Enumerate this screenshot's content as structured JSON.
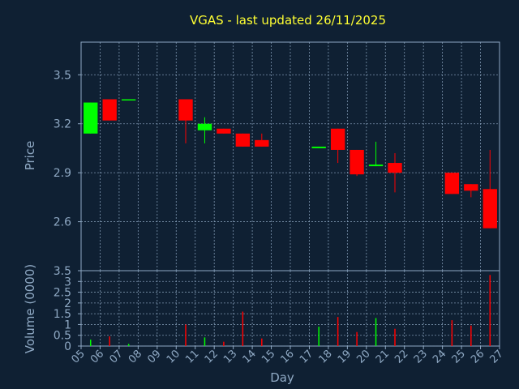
{
  "chart_data": [
    {
      "type": "candlestick",
      "title": "VGAS - last updated 26/11/2025",
      "xlabel": "Day",
      "ylabel": "Price",
      "ylim": [
        2.3,
        3.7
      ],
      "yticks": [
        2.6,
        2.9,
        3.2,
        3.5
      ],
      "yticklabels": [
        "2.6",
        "2.9",
        "3.2",
        "3.5"
      ],
      "xlim": [
        5,
        27
      ],
      "xticks": [
        "05",
        "06",
        "07",
        "08",
        "09",
        "10",
        "11",
        "12",
        "13",
        "14",
        "15",
        "16",
        "17",
        "18",
        "19",
        "20",
        "21",
        "22",
        "23",
        "24",
        "25",
        "26",
        "27"
      ],
      "grid": true,
      "up_color": "#00ff00",
      "down_color": "#ff0000",
      "candles": [
        {
          "day": 5,
          "open": 3.14,
          "high": 3.33,
          "low": 3.14,
          "close": 3.33
        },
        {
          "day": 6,
          "open": 3.35,
          "high": 3.35,
          "low": 3.22,
          "close": 3.22
        },
        {
          "day": 7,
          "open": 3.35,
          "high": 3.35,
          "low": 3.35,
          "close": 3.35
        },
        {
          "day": 10,
          "open": 3.35,
          "high": 3.35,
          "low": 3.08,
          "close": 3.22
        },
        {
          "day": 11,
          "open": 3.16,
          "high": 3.24,
          "low": 3.08,
          "close": 3.2
        },
        {
          "day": 12,
          "open": 3.17,
          "high": 3.17,
          "low": 3.14,
          "close": 3.14
        },
        {
          "day": 13,
          "open": 3.14,
          "high": 3.14,
          "low": 3.06,
          "close": 3.06
        },
        {
          "day": 14,
          "open": 3.1,
          "high": 3.14,
          "low": 3.06,
          "close": 3.06
        },
        {
          "day": 17,
          "open": 3.05,
          "high": 3.06,
          "low": 3.05,
          "close": 3.06
        },
        {
          "day": 18,
          "open": 3.17,
          "high": 3.17,
          "low": 2.96,
          "close": 3.04
        },
        {
          "day": 19,
          "open": 3.04,
          "high": 3.04,
          "low": 2.88,
          "close": 2.89
        },
        {
          "day": 20,
          "open": 2.94,
          "high": 3.09,
          "low": 2.94,
          "close": 2.95
        },
        {
          "day": 21,
          "open": 2.96,
          "high": 3.02,
          "low": 2.78,
          "close": 2.9
        },
        {
          "day": 24,
          "open": 2.9,
          "high": 2.9,
          "low": 2.77,
          "close": 2.77
        },
        {
          "day": 25,
          "open": 2.83,
          "high": 2.83,
          "low": 2.75,
          "close": 2.79
        },
        {
          "day": 26,
          "open": 2.8,
          "high": 3.04,
          "low": 2.56,
          "close": 2.56
        }
      ]
    },
    {
      "type": "bar",
      "xlabel": "Day",
      "ylabel": "Volume (0000)",
      "ylim": [
        0,
        3.5
      ],
      "yticks": [
        0,
        0.5,
        1,
        1.5,
        2,
        2.5,
        3,
        3.5
      ],
      "yticklabels": [
        "0",
        "0.5",
        "1",
        "1.5",
        "2",
        "2.5",
        "3",
        "3.5"
      ],
      "grid": true,
      "bars": [
        {
          "day": 5,
          "value": 0.3,
          "color": "#00ff00"
        },
        {
          "day": 6,
          "value": 0.45,
          "color": "#ff0000"
        },
        {
          "day": 7,
          "value": 0.1,
          "color": "#00ff00"
        },
        {
          "day": 10,
          "value": 1.0,
          "color": "#ff0000"
        },
        {
          "day": 11,
          "value": 0.4,
          "color": "#00ff00"
        },
        {
          "day": 12,
          "value": 0.2,
          "color": "#ff0000"
        },
        {
          "day": 13,
          "value": 1.6,
          "color": "#ff0000"
        },
        {
          "day": 14,
          "value": 0.35,
          "color": "#ff0000"
        },
        {
          "day": 17,
          "value": 0.9,
          "color": "#00ff00"
        },
        {
          "day": 18,
          "value": 1.35,
          "color": "#ff0000"
        },
        {
          "day": 19,
          "value": 0.65,
          "color": "#ff0000"
        },
        {
          "day": 20,
          "value": 1.3,
          "color": "#00ff00"
        },
        {
          "day": 21,
          "value": 0.8,
          "color": "#ff0000"
        },
        {
          "day": 24,
          "value": 1.2,
          "color": "#ff0000"
        },
        {
          "day": 25,
          "value": 0.95,
          "color": "#ff0000"
        },
        {
          "day": 26,
          "value": 3.3,
          "color": "#ff0000"
        }
      ]
    }
  ],
  "colors": {
    "background": "#0f2033",
    "axis": "#8fa9c4",
    "grid": "#8fa9c4",
    "title": "#ffff33"
  }
}
